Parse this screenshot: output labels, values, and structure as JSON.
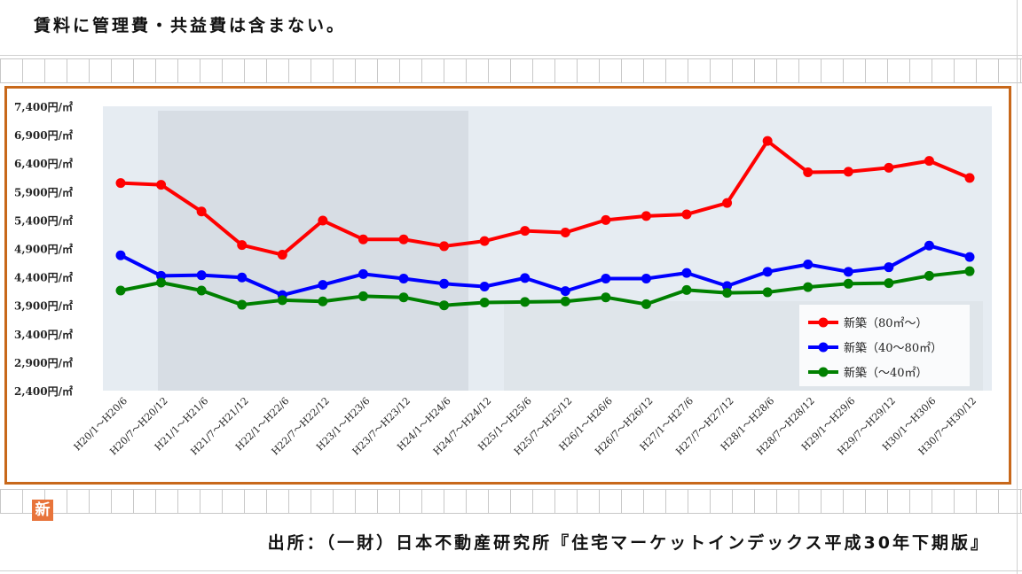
{
  "header": {
    "note": "賃料に管理費・共益費は含まない。"
  },
  "footer": {
    "source": "出所：（一財）日本不動産研究所『住宅マーケットインデックス平成30年下期版』"
  },
  "badge": {
    "label": "新"
  },
  "colors": {
    "frame": "#c8681a",
    "legend_bg": "#ffffff"
  },
  "chart_data": {
    "type": "line",
    "title": "",
    "xlabel": "",
    "ylabel": "",
    "ylim": [
      2400,
      7400
    ],
    "yticks": [
      7400,
      6900,
      6400,
      5900,
      5400,
      4900,
      4400,
      3900,
      3400,
      2900,
      2400
    ],
    "ytick_labels": [
      "7,400円/㎡",
      "6,900円/㎡",
      "6,400円/㎡",
      "5,900円/㎡",
      "5,400円/㎡",
      "4,900円/㎡",
      "4,400円/㎡",
      "3,900円/㎡",
      "3,400円/㎡",
      "2,900円/㎡",
      "2,400円/㎡"
    ],
    "categories": [
      "H20/1～H20/6",
      "H20/7～H20/12",
      "H21/1～H21/6",
      "H21/7～H21/12",
      "H22/1～H22/6",
      "H22/7～H22/12",
      "H23/1～H23/6",
      "H23/7～H23/12",
      "H24/1～H24/6",
      "H24/7～H24/12",
      "H25/1～H25/6",
      "H25/7～H25/12",
      "H26/1～H26/6",
      "H26/7～H26/12",
      "H27/1～H27/6",
      "H27/7～H27/12",
      "H28/1～H28/6",
      "H28/7～H28/12",
      "H29/1～H29/6",
      "H29/7～H29/12",
      "H30/1～H30/6",
      "H30/7～H30/12"
    ],
    "legend_position": "bottom-right",
    "grid": false,
    "series": [
      {
        "name": "新築（80㎡～）",
        "color": "#ff0000",
        "values": [
          6050,
          6020,
          5550,
          4960,
          4790,
          5390,
          5060,
          5060,
          4940,
          5030,
          5210,
          5180,
          5400,
          5470,
          5500,
          5700,
          6790,
          6240,
          6250,
          6320,
          6440,
          6140
        ]
      },
      {
        "name": "新築（40～80㎡）",
        "color": "#0000ff",
        "values": [
          4780,
          4420,
          4430,
          4390,
          4080,
          4260,
          4450,
          4370,
          4280,
          4230,
          4380,
          4150,
          4370,
          4370,
          4470,
          4240,
          4490,
          4620,
          4490,
          4570,
          4950,
          4750
        ]
      },
      {
        "name": "新築（～40㎡）",
        "color": "#008000",
        "values": [
          4160,
          4300,
          4160,
          3910,
          3990,
          3970,
          4060,
          4040,
          3900,
          3950,
          3960,
          3970,
          4040,
          3920,
          4170,
          4120,
          4130,
          4220,
          4280,
          4290,
          4420,
          4500
        ]
      }
    ]
  }
}
